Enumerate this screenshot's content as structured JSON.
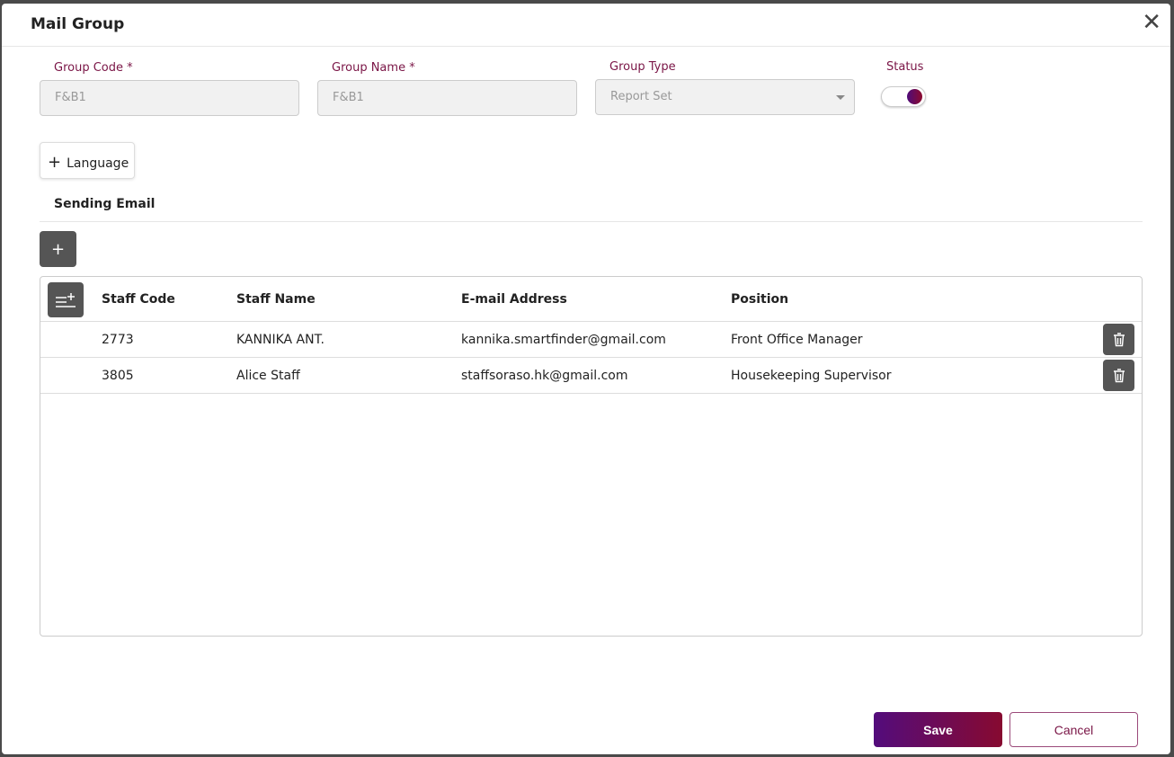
{
  "dialog": {
    "title": "Mail Group"
  },
  "form": {
    "group_code": {
      "label": "Group Code *",
      "value": "F&B1"
    },
    "group_name": {
      "label": "Group Name *",
      "value": "F&B1"
    },
    "group_type": {
      "label": "Group Type",
      "value": "Report Set"
    },
    "status": {
      "label": "Status",
      "on": true
    }
  },
  "language_button": "Language",
  "section_title": "Sending Email",
  "table": {
    "headers": [
      "Staff Code",
      "Staff Name",
      "E-mail Address",
      "Position"
    ],
    "rows": [
      [
        "2773",
        "KANNIKA ANT.",
        "kannika.smartfinder@gmail.com",
        "Front Office Manager"
      ],
      [
        "3805",
        "Alice Staff",
        "staffsoraso.hk@gmail.com",
        "Housekeeping Supervisor"
      ]
    ]
  },
  "footer": {
    "save": "Save",
    "cancel": "Cancel"
  },
  "colors": {
    "accent": "#7a1546",
    "gradient_start": "#530c7c",
    "gradient_end": "#870a30"
  }
}
